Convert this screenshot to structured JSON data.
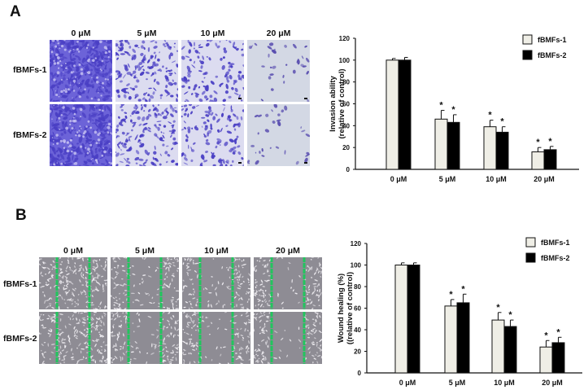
{
  "panels": {
    "A": {
      "label": "A",
      "columns": [
        "0 μM",
        "5 μM",
        "10 μM",
        "20 μM"
      ],
      "rows": [
        "fBMFs-1",
        "fBMFs-2"
      ],
      "stain_color": "#4a3fc4",
      "background_color": "#dfe3ee"
    },
    "B": {
      "label": "B",
      "columns": [
        "0 μM",
        "5 μM",
        "10 μM",
        "20 μM"
      ],
      "rows": [
        "fBMFs-1",
        "fBMFs-2"
      ],
      "wound_line_color": "#22c55e",
      "background_color": "#8e8c94"
    }
  },
  "chart_data": [
    {
      "type": "bar",
      "title": "",
      "categories": [
        "0 μM",
        "5 μM",
        "10 μM",
        "20 μM"
      ],
      "series": [
        {
          "name": "fBMFs-1",
          "color": "#efeee6",
          "values": [
            100,
            46,
            39,
            16
          ],
          "errors": [
            1.5,
            8,
            6,
            4
          ],
          "significant": [
            false,
            true,
            true,
            true
          ]
        },
        {
          "name": "fBMFs-2",
          "color": "#000000",
          "values": [
            100,
            43,
            34,
            18
          ],
          "errors": [
            2.5,
            7,
            5,
            3
          ],
          "significant": [
            false,
            true,
            true,
            true
          ]
        }
      ],
      "xlabel": "",
      "ylabel": "Invasion ability\n(relative of control)",
      "ylabel_lines": [
        "Invasion ability",
        "(relative of control)"
      ],
      "ylim": [
        0,
        120
      ],
      "yticks": [
        0,
        20,
        40,
        60,
        80,
        100,
        120
      ],
      "grid": false,
      "legend_position": "upper right",
      "annotation": "*"
    },
    {
      "type": "bar",
      "title": "",
      "categories": [
        "0 μM",
        "5 μM",
        "10 μM",
        "20 μM"
      ],
      "series": [
        {
          "name": "fBMFs-1",
          "color": "#efeee6",
          "values": [
            100,
            62,
            49,
            24
          ],
          "errors": [
            2,
            6,
            7,
            6
          ],
          "significant": [
            false,
            true,
            true,
            true
          ]
        },
        {
          "name": "fBMFs-2",
          "color": "#000000",
          "values": [
            100,
            65,
            43,
            28
          ],
          "errors": [
            2,
            8,
            6,
            5
          ],
          "significant": [
            false,
            true,
            true,
            true
          ]
        }
      ],
      "xlabel": "",
      "ylabel": "Wound healing (%)\n((relative of control)",
      "ylabel_lines": [
        "Wound healing (%)",
        "((relative of control)"
      ],
      "ylim": [
        0,
        120
      ],
      "yticks": [
        0,
        20,
        40,
        60,
        80,
        100,
        120
      ],
      "grid": false,
      "legend_position": "upper right",
      "annotation": "*"
    }
  ]
}
